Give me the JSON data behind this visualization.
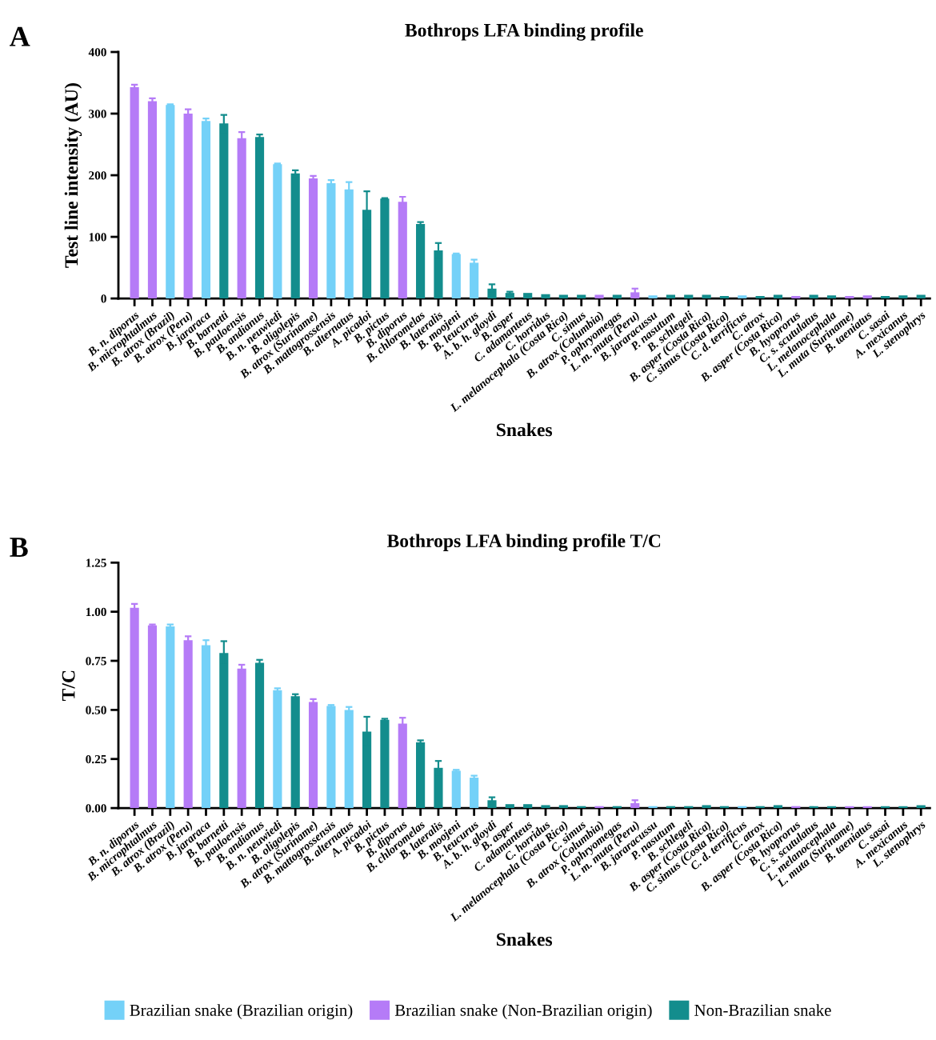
{
  "chart_data": [
    {
      "type": "bar",
      "title": "Bothrops LFA binding profile",
      "xlabel": "Snakes",
      "ylabel": "Test line intensity (AU)",
      "annotations": [
        "A"
      ],
      "categories": [
        "B. n. diporus",
        "B. microphtalmus",
        "B. atrox (Brazil)",
        "B. atrox (Peru)",
        "B. jararaca",
        "B. barnetti",
        "B. pauloensis",
        "B. andianus",
        "B. n. neuwiedi",
        "B. oligolepis",
        "B. atrox (Suriname)",
        "B. mattogrossensis",
        "B. alternatus",
        "A. picadoi",
        "B. pictus",
        "B. diporus",
        "B. chloromelas",
        "B. lateralis",
        "B. moojeni",
        "B. leucurus",
        "A. b. h. gloydi",
        "B. asper",
        "C. adamanteus",
        "C. horridus",
        "L. melanocephala (Costa Rica)",
        "C. simus",
        "B. atrox (Columbia)",
        "P. ophryomegas",
        "L. m. muta (Peru)",
        "B. jararacussu",
        "P. nasutum",
        "B. schlegeli",
        "B. asper (Costa Rica)",
        "C. simus (Costa Rica)",
        "C. d. terrificus",
        "C. atrox",
        "B. asper (Costa Rica)",
        "B. hyoprorus",
        "C. s. scutulatus",
        "L. melanocephala",
        "L. muta (Suriname)",
        "B. taeniatus",
        "C. sasai",
        "A. mexicanus",
        "L. stenophrys"
      ],
      "series": [
        {
          "color": "#74d1f8",
          "values": [
            null,
            null,
            314,
            null,
            288,
            null,
            null,
            null,
            218,
            null,
            null,
            187,
            177,
            null,
            null,
            null,
            null,
            null,
            72,
            58,
            null,
            null,
            null,
            null,
            null,
            null,
            null,
            null,
            null,
            5,
            null,
            null,
            null,
            null,
            5,
            null,
            null,
            null,
            null,
            null,
            null,
            null,
            null,
            null,
            null
          ],
          "errors": [
            null,
            null,
            1,
            null,
            4,
            null,
            null,
            null,
            1,
            null,
            null,
            5,
            12,
            null,
            null,
            null,
            null,
            null,
            1,
            5,
            null,
            null,
            null,
            null,
            null,
            null,
            null,
            null,
            null,
            null,
            null,
            null,
            null,
            null,
            null,
            null,
            null,
            null,
            null,
            null,
            null,
            null,
            null,
            null,
            null
          ]
        },
        {
          "color": "#b57bf7",
          "values": [
            343,
            320,
            null,
            300,
            null,
            null,
            260,
            null,
            null,
            null,
            195,
            null,
            null,
            null,
            null,
            157,
            null,
            null,
            null,
            null,
            null,
            null,
            null,
            null,
            null,
            null,
            6,
            null,
            10,
            null,
            null,
            null,
            null,
            null,
            null,
            null,
            null,
            4,
            null,
            null,
            4,
            5,
            null,
            null,
            null
          ],
          "errors": [
            4,
            5,
            null,
            7,
            null,
            null,
            10,
            null,
            null,
            null,
            4,
            null,
            null,
            null,
            null,
            8,
            null,
            null,
            null,
            null,
            null,
            null,
            null,
            null,
            null,
            null,
            null,
            null,
            6,
            null,
            null,
            null,
            null,
            null,
            null,
            null,
            null,
            null,
            null,
            null,
            null,
            null,
            null,
            null,
            null
          ]
        },
        {
          "color": "#138d8d",
          "values": [
            null,
            null,
            null,
            null,
            null,
            284,
            null,
            262,
            null,
            203,
            null,
            null,
            null,
            144,
            162,
            null,
            121,
            78,
            null,
            null,
            16,
            9,
            9,
            7,
            6,
            6,
            null,
            6,
            null,
            null,
            6,
            6,
            6,
            4,
            null,
            4,
            6,
            null,
            6,
            5,
            null,
            null,
            4,
            5,
            6
          ],
          "errors": [
            null,
            null,
            null,
            null,
            null,
            14,
            null,
            4,
            null,
            5,
            null,
            null,
            null,
            30,
            1,
            null,
            3,
            12,
            null,
            null,
            7,
            2,
            null,
            null,
            null,
            null,
            null,
            null,
            null,
            null,
            null,
            null,
            null,
            null,
            null,
            null,
            null,
            null,
            null,
            null,
            null,
            null,
            null,
            null,
            null
          ]
        }
      ],
      "ylim": [
        0,
        400
      ],
      "yticks": [
        0,
        100,
        200,
        300,
        400
      ],
      "legend": false
    },
    {
      "type": "bar",
      "title": "Bothrops LFA binding profile T/C",
      "xlabel": "Snakes",
      "ylabel": "T/C",
      "annotations": [
        "B"
      ],
      "categories": [
        "B. n. diporus",
        "B. microphtalmus",
        "B. atrox (Brazil)",
        "B. atrox (Peru)",
        "B. jararaca",
        "B. barnetti",
        "B. pauloensis",
        "B. andianus",
        "B. n. neuwiedi",
        "B. oligolepis",
        "B. atrox (Suriname)",
        "B. mattogrossensis",
        "B. alternatus",
        "A. picadoi",
        "B. pictus",
        "B. diporus",
        "B. chloromelas",
        "B. lateralis",
        "B. moojeni",
        "B. leucurus",
        "A. b. h. gloydi",
        "B. asper",
        "C. adamanteus",
        "C. horridus",
        "L. melanocephala (Costa Rica)",
        "C. simus",
        "B. atrox (Columbia)",
        "P. ophryomegas",
        "L. m. muta (Peru)",
        "B. jararacussu",
        "P. nasutum",
        "B. schlegeli",
        "B. asper (Costa Rica)",
        "C. simus (Costa Rica)",
        "C. d. terrificus",
        "C. atrox",
        "B. asper (Costa Rica)",
        "B. hyoprorus",
        "C. s. scutulatus",
        "L. melanocephala",
        "L. muta (Suriname)",
        "B. taeniatus",
        "C. sasai",
        "A. mexicanus",
        "L. stenophrys"
      ],
      "series": [
        {
          "name": "Brazilian snake (Brazilian origin)",
          "color": "#74d1f8",
          "values": [
            null,
            null,
            0.925,
            null,
            0.83,
            null,
            null,
            null,
            0.6,
            null,
            null,
            0.52,
            0.5,
            null,
            null,
            null,
            null,
            null,
            0.19,
            0.155,
            null,
            null,
            null,
            null,
            null,
            null,
            null,
            null,
            null,
            0.01,
            null,
            null,
            null,
            null,
            0.01,
            null,
            null,
            null,
            null,
            null,
            null,
            null,
            null,
            null,
            null
          ],
          "errors": [
            null,
            null,
            0.01,
            null,
            0.025,
            null,
            null,
            null,
            0.01,
            null,
            null,
            0.005,
            0.015,
            null,
            null,
            null,
            null,
            null,
            0.005,
            0.01,
            null,
            null,
            null,
            null,
            null,
            null,
            null,
            null,
            null,
            null,
            null,
            null,
            null,
            null,
            null,
            null,
            null,
            null,
            null,
            null,
            null,
            null,
            null,
            null,
            null
          ]
        },
        {
          "name": "Brazilian snake (Non-Brazilian origin)",
          "color": "#b57bf7",
          "values": [
            1.02,
            0.93,
            null,
            0.855,
            null,
            null,
            0.71,
            null,
            null,
            null,
            0.54,
            null,
            null,
            null,
            null,
            0.43,
            null,
            null,
            null,
            null,
            null,
            null,
            null,
            null,
            null,
            null,
            0.01,
            null,
            0.025,
            null,
            null,
            null,
            null,
            null,
            null,
            null,
            null,
            0.01,
            null,
            null,
            0.01,
            0.01,
            null,
            null,
            null
          ],
          "errors": [
            0.02,
            0.005,
            null,
            0.02,
            null,
            null,
            0.02,
            null,
            null,
            null,
            0.015,
            null,
            null,
            null,
            null,
            0.03,
            null,
            null,
            null,
            null,
            null,
            null,
            null,
            null,
            null,
            null,
            null,
            null,
            0.015,
            null,
            null,
            null,
            null,
            null,
            null,
            null,
            null,
            null,
            null,
            null,
            null,
            null,
            null,
            null,
            null
          ]
        },
        {
          "name": "Non-Brazilian snake",
          "color": "#138d8d",
          "values": [
            null,
            null,
            null,
            null,
            null,
            0.79,
            null,
            0.74,
            null,
            0.57,
            null,
            null,
            null,
            0.39,
            0.45,
            null,
            0.335,
            0.205,
            null,
            null,
            0.04,
            0.02,
            0.02,
            0.015,
            0.015,
            0.01,
            null,
            0.01,
            null,
            null,
            0.01,
            0.01,
            0.015,
            0.01,
            null,
            0.01,
            0.015,
            null,
            0.01,
            0.01,
            null,
            null,
            0.01,
            0.01,
            0.015
          ],
          "errors": [
            null,
            null,
            null,
            null,
            null,
            0.06,
            null,
            0.015,
            null,
            0.01,
            null,
            null,
            null,
            0.075,
            0.005,
            null,
            0.01,
            0.035,
            null,
            null,
            0.015,
            null,
            null,
            null,
            null,
            null,
            null,
            null,
            null,
            null,
            null,
            null,
            null,
            null,
            null,
            null,
            null,
            null,
            null,
            null,
            null,
            null,
            null,
            null,
            null
          ]
        }
      ],
      "ylim": [
        0,
        1.25
      ],
      "yticks": [
        {
          "value": 0,
          "label": "0.00"
        },
        {
          "value": 0.25,
          "label": "0.25"
        },
        {
          "value": 0.5,
          "label": "0.50"
        },
        {
          "value": 0.75,
          "label": "0.75"
        },
        {
          "value": 1,
          "label": "1.00"
        },
        {
          "value": 1.25,
          "label": "1.25"
        }
      ],
      "legend": "bottom"
    }
  ]
}
